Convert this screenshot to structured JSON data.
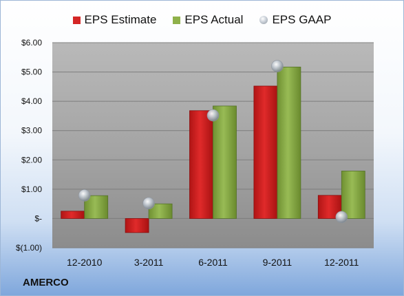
{
  "chart_data": {
    "type": "bar",
    "categories": [
      "12-2010",
      "3-2011",
      "6-2011",
      "9-2011",
      "12-2011"
    ],
    "series": [
      {
        "name": "EPS Estimate",
        "kind": "bar",
        "color": "#d42626",
        "values": [
          0.25,
          -0.48,
          3.68,
          4.52,
          0.79
        ]
      },
      {
        "name": "EPS Actual",
        "kind": "bar",
        "color": "#8fb14a",
        "values": [
          0.78,
          0.5,
          3.84,
          5.17,
          1.62
        ]
      },
      {
        "name": "EPS GAAP",
        "kind": "marker",
        "color": "#b9c0c8",
        "values": [
          0.79,
          0.52,
          3.52,
          5.2,
          0.05
        ]
      }
    ],
    "ylim": [
      -1,
      6
    ],
    "y_ticks": [
      {
        "value": 6,
        "label": "$6.00"
      },
      {
        "value": 5,
        "label": "$5.00"
      },
      {
        "value": 4,
        "label": "$4.00"
      },
      {
        "value": 3,
        "label": "$3.00"
      },
      {
        "value": 2,
        "label": "$2.00"
      },
      {
        "value": 1,
        "label": "$1.00"
      },
      {
        "value": 0,
        "label": "$-"
      },
      {
        "value": -1,
        "label": "$(1.00)"
      }
    ],
    "grid": true,
    "legend": "top-center"
  },
  "company": "AMERCO"
}
